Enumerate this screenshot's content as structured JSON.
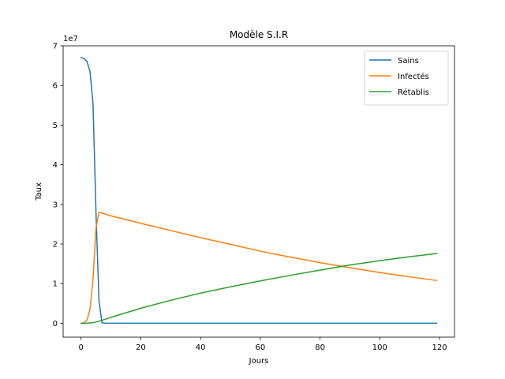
{
  "chart_data": {
    "type": "line",
    "title": "Modèle S.I.R",
    "xlabel": "Jours",
    "ylabel": "Taux",
    "y_scale_label": "1e7",
    "xlim": [
      -6,
      125
    ],
    "ylim": [
      -3500000,
      70000000
    ],
    "x_ticks": [
      0,
      20,
      40,
      60,
      80,
      100,
      120
    ],
    "x_tick_labels": [
      "0",
      "20",
      "40",
      "60",
      "80",
      "100",
      "120"
    ],
    "y_ticks": [
      0,
      10000000,
      20000000,
      30000000,
      40000000,
      50000000,
      60000000,
      70000000
    ],
    "y_tick_labels": [
      "0",
      "1",
      "2",
      "3",
      "4",
      "5",
      "6",
      "7"
    ],
    "grid": false,
    "legend_position": "top-right",
    "series": [
      {
        "name": "Sains",
        "color": "#1f77b4",
        "x": [
          0,
          1,
          2,
          3,
          4,
          5,
          6,
          7,
          8,
          119
        ],
        "y": [
          67000000,
          66800000,
          66000000,
          63500000,
          55500000,
          28000000,
          5700000,
          100000,
          0,
          0
        ]
      },
      {
        "name": "Infectés",
        "color": "#ff7f0e",
        "x": [
          0,
          1,
          2,
          3,
          4,
          5,
          6,
          10,
          20,
          30,
          40,
          50,
          60,
          70,
          80,
          90,
          100,
          110,
          119
        ],
        "y": [
          0,
          100000,
          800000,
          3500000,
          11000000,
          24000000,
          28000000,
          27100000,
          25200000,
          23400000,
          21600000,
          19900000,
          18200000,
          16700000,
          15300000,
          14000000,
          12800000,
          11700000,
          10800000
        ]
      },
      {
        "name": "Rétablis",
        "color": "#2ca02c",
        "x": [
          0,
          2,
          4,
          6,
          8,
          10,
          20,
          30,
          40,
          50,
          60,
          70,
          80,
          90,
          100,
          110,
          119
        ],
        "y": [
          0,
          20000,
          150000,
          500000,
          1000000,
          1500000,
          3800000,
          5800000,
          7600000,
          9200000,
          10700000,
          12100000,
          13400000,
          14700000,
          15800000,
          16800000,
          17600000
        ]
      }
    ]
  }
}
